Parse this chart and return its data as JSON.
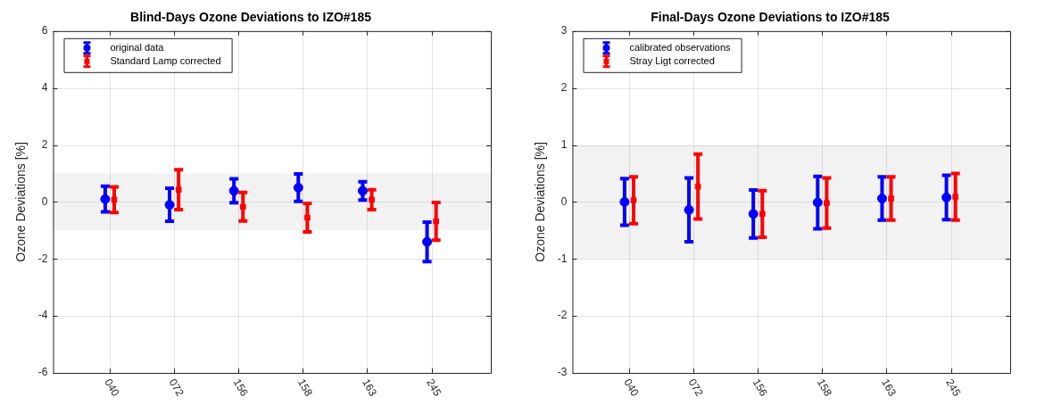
{
  "chart_data": [
    {
      "type": "scatter",
      "title": "Blind-Days Ozone Deviations to IZO#185",
      "ylabel": "Ozone Deviations [%]",
      "categories": [
        "040",
        "072",
        "156",
        "158",
        "163",
        "245"
      ],
      "series": [
        {
          "name": "original data",
          "color": "#0000ff",
          "marker": "circle",
          "values": [
            0.1,
            -0.1,
            0.39,
            0.5,
            0.39,
            -1.4
          ],
          "errors": [
            0.45,
            0.58,
            0.42,
            0.48,
            0.32,
            0.69
          ]
        },
        {
          "name": "Standard Lamp corrected",
          "color": "#ff0000",
          "marker": "square",
          "values": [
            0.08,
            0.43,
            -0.17,
            -0.55,
            0.08,
            -0.68
          ],
          "errors": [
            0.45,
            0.7,
            0.5,
            0.5,
            0.35,
            0.66
          ]
        }
      ],
      "ylim": [
        -6,
        6
      ],
      "yticks": [
        -6,
        -4,
        -2,
        0,
        2,
        4,
        6
      ],
      "bands": [
        {
          "axis": "y",
          "from": -1,
          "to": 1,
          "color": "#f2f2f2"
        }
      ],
      "grid": true,
      "legend": "top left"
    },
    {
      "type": "scatter",
      "title": "Final-Days Ozone Deviations to IZO#185",
      "ylabel": "Ozone Deviations [%]",
      "categories": [
        "040",
        "072",
        "156",
        "158",
        "163",
        "245"
      ],
      "series": [
        {
          "name": "calibrated observations",
          "color": "#0000ff",
          "marker": "circle",
          "values": [
            0,
            -0.14,
            -0.21,
            -0.01,
            0.06,
            0.08
          ],
          "errors": [
            0.41,
            0.56,
            0.42,
            0.46,
            0.38,
            0.39
          ]
        },
        {
          "name": "Stray Ligt corrected",
          "color": "#ff0000",
          "marker": "square",
          "values": [
            0.03,
            0.27,
            -0.21,
            -0.02,
            0.06,
            0.09
          ],
          "errors": [
            0.41,
            0.57,
            0.41,
            0.44,
            0.38,
            0.41
          ]
        }
      ],
      "ylim": [
        -3,
        3
      ],
      "yticks": [
        -3,
        -2,
        -1,
        0,
        1,
        2,
        3
      ],
      "bands": [
        {
          "axis": "y",
          "from": -1,
          "to": 1,
          "color": "#f2f2f2"
        }
      ],
      "grid": true,
      "legend": "top left"
    }
  ]
}
